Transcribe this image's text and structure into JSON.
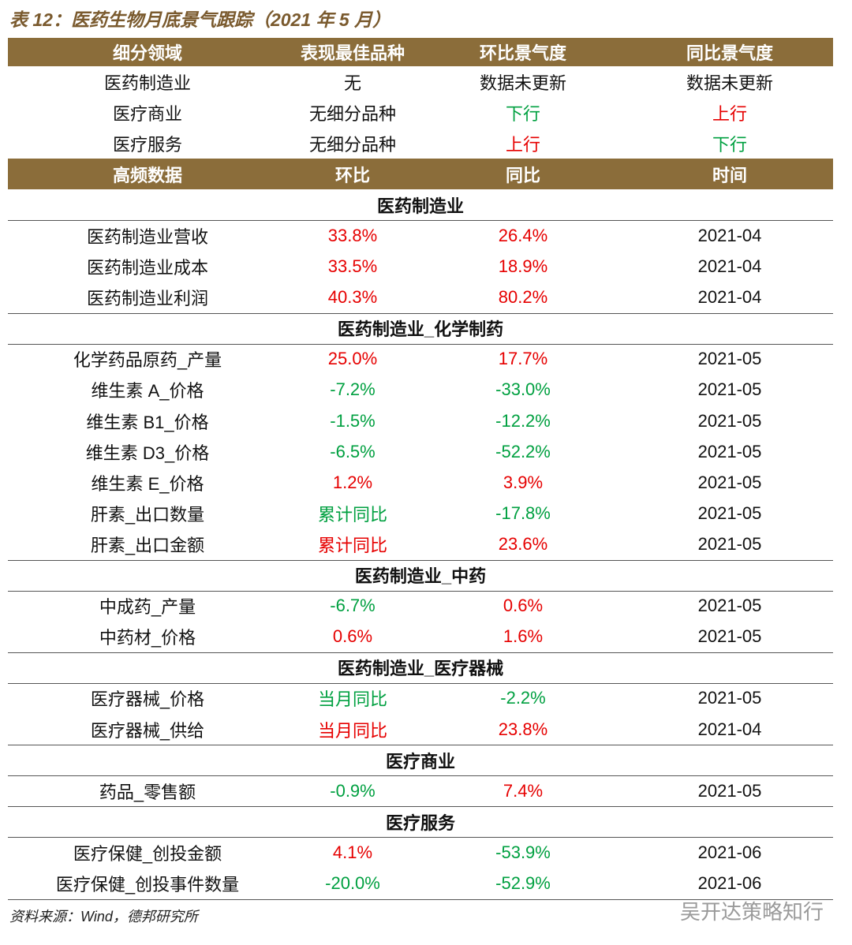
{
  "title": "表 12：医药生物月底景气跟踪（2021 年 5 月）",
  "summary": {
    "header": [
      "细分领域",
      "表现最佳品种",
      "环比景气度",
      "同比景气度"
    ],
    "rows": [
      [
        "医药制造业",
        "无",
        "数据未更新",
        "数据未更新"
      ],
      [
        "医疗商业",
        "无细分品种",
        {
          "text": "下行",
          "color": "#00a040"
        },
        {
          "text": "上行",
          "color": "#e60000"
        }
      ],
      [
        "医疗服务",
        "无细分品种",
        {
          "text": "上行",
          "color": "#e60000"
        },
        {
          "text": "下行",
          "color": "#00a040"
        }
      ]
    ]
  },
  "detail": {
    "header": [
      "高频数据",
      "环比",
      "同比",
      "时间"
    ],
    "sections": [
      {
        "title": "医药制造业",
        "rows": [
          [
            "医药制造业营收",
            {
              "text": "33.8%",
              "color": "#e60000"
            },
            {
              "text": "26.4%",
              "color": "#e60000"
            },
            "2021-04"
          ],
          [
            "医药制造业成本",
            {
              "text": "33.5%",
              "color": "#e60000"
            },
            {
              "text": "18.9%",
              "color": "#e60000"
            },
            "2021-04"
          ],
          [
            "医药制造业利润",
            {
              "text": "40.3%",
              "color": "#e60000"
            },
            {
              "text": "80.2%",
              "color": "#e60000"
            },
            "2021-04"
          ]
        ]
      },
      {
        "title": "医药制造业_化学制药",
        "rows": [
          [
            "化学药品原药_产量",
            {
              "text": "25.0%",
              "color": "#e60000"
            },
            {
              "text": "17.7%",
              "color": "#e60000"
            },
            "2021-05"
          ],
          [
            "维生素 A_价格",
            {
              "text": "-7.2%",
              "color": "#00a040"
            },
            {
              "text": "-33.0%",
              "color": "#00a040"
            },
            "2021-05"
          ],
          [
            "维生素 B1_价格",
            {
              "text": "-1.5%",
              "color": "#00a040"
            },
            {
              "text": "-12.2%",
              "color": "#00a040"
            },
            "2021-05"
          ],
          [
            "维生素 D3_价格",
            {
              "text": "-6.5%",
              "color": "#00a040"
            },
            {
              "text": "-52.2%",
              "color": "#00a040"
            },
            "2021-05"
          ],
          [
            "维生素 E_价格",
            {
              "text": "1.2%",
              "color": "#e60000"
            },
            {
              "text": "3.9%",
              "color": "#e60000"
            },
            "2021-05"
          ],
          [
            "肝素_出口数量",
            {
              "text": "累计同比",
              "color": "#00a040"
            },
            {
              "text": "-17.8%",
              "color": "#00a040"
            },
            "2021-05"
          ],
          [
            "肝素_出口金额",
            {
              "text": "累计同比",
              "color": "#e60000"
            },
            {
              "text": "23.6%",
              "color": "#e60000"
            },
            "2021-05"
          ]
        ]
      },
      {
        "title": "医药制造业_中药",
        "rows": [
          [
            "中成药_产量",
            {
              "text": "-6.7%",
              "color": "#00a040"
            },
            {
              "text": "0.6%",
              "color": "#e60000"
            },
            "2021-05"
          ],
          [
            "中药材_价格",
            {
              "text": "0.6%",
              "color": "#e60000"
            },
            {
              "text": "1.6%",
              "color": "#e60000"
            },
            "2021-05"
          ]
        ]
      },
      {
        "title": "医药制造业_医疗器械",
        "rows": [
          [
            "医疗器械_价格",
            {
              "text": "当月同比",
              "color": "#00a040"
            },
            {
              "text": "-2.2%",
              "color": "#00a040"
            },
            "2021-05"
          ],
          [
            "医疗器械_供给",
            {
              "text": "当月同比",
              "color": "#e60000"
            },
            {
              "text": "23.8%",
              "color": "#e60000"
            },
            "2021-04"
          ]
        ]
      },
      {
        "title": "医疗商业",
        "rows": [
          [
            "药品_零售额",
            {
              "text": "-0.9%",
              "color": "#00a040"
            },
            {
              "text": "7.4%",
              "color": "#e60000"
            },
            "2021-05"
          ]
        ]
      },
      {
        "title": "医疗服务",
        "rows": [
          [
            "医疗保健_创投金额",
            {
              "text": "4.1%",
              "color": "#e60000"
            },
            {
              "text": "-53.9%",
              "color": "#00a040"
            },
            "2021-06"
          ],
          [
            "医疗保健_创投事件数量",
            {
              "text": "-20.0%",
              "color": "#00a040"
            },
            {
              "text": "-52.9%",
              "color": "#00a040"
            },
            "2021-06"
          ]
        ]
      }
    ]
  },
  "source": "资料来源：Wind，德邦研究所",
  "watermark": "吴开达策略知行"
}
